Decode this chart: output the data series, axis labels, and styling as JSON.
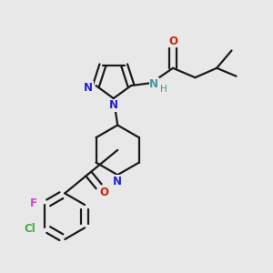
{
  "bg_color": "#e8e8e8",
  "bond_color": "#1a1a1a",
  "n_color": "#2222cc",
  "o_color": "#cc2200",
  "f_color": "#cc44cc",
  "cl_color": "#44aa44",
  "nh_color": "#449999",
  "lw": 1.6,
  "fig_size": [
    3.0,
    3.0
  ],
  "dpi": 100,
  "xlim": [
    0,
    10
  ],
  "ylim": [
    0,
    10
  ]
}
